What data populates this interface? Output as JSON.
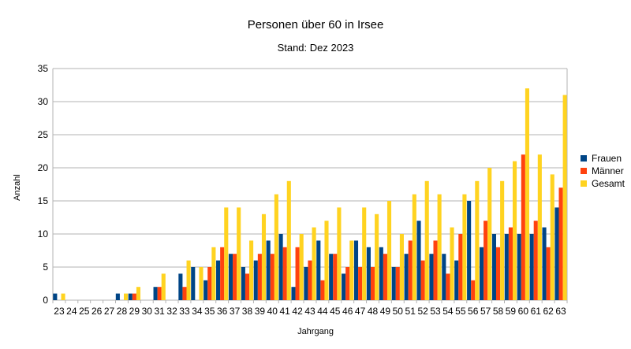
{
  "chart_data": {
    "type": "bar",
    "title": "Personen über 60 in Irsee",
    "subtitle": "Stand: Dez 2023",
    "xlabel": "Jahrgang",
    "ylabel": "Anzahl",
    "ylim": [
      0,
      35
    ],
    "yticks": [
      0,
      5,
      10,
      15,
      20,
      25,
      30,
      35
    ],
    "grid": true,
    "legend_position": "right",
    "categories": [
      "23",
      "24",
      "25",
      "26",
      "27",
      "28",
      "29",
      "30",
      "31",
      "32",
      "33",
      "34",
      "35",
      "36",
      "37",
      "38",
      "39",
      "40",
      "41",
      "42",
      "43",
      "44",
      "45",
      "46",
      "47",
      "48",
      "49",
      "50",
      "51",
      "52",
      "53",
      "54",
      "55",
      "56",
      "57",
      "58",
      "59",
      "60",
      "61",
      "62",
      "63"
    ],
    "series": [
      {
        "name": "Frauen",
        "color": "#004586",
        "values": [
          1,
          0,
          0,
          0,
          0,
          1,
          1,
          0,
          2,
          0,
          4,
          5,
          3,
          6,
          7,
          5,
          6,
          9,
          10,
          2,
          5,
          9,
          7,
          4,
          9,
          8,
          8,
          5,
          7,
          12,
          7,
          7,
          6,
          15,
          8,
          10,
          10,
          10,
          10,
          11,
          14
        ]
      },
      {
        "name": "Männer",
        "color": "#ff420e",
        "values": [
          0,
          0,
          0,
          0,
          0,
          0,
          1,
          0,
          2,
          0,
          2,
          0,
          5,
          8,
          7,
          4,
          7,
          7,
          8,
          8,
          6,
          3,
          7,
          5,
          5,
          5,
          7,
          5,
          9,
          6,
          9,
          4,
          10,
          3,
          12,
          8,
          11,
          22,
          12,
          8,
          17
        ]
      },
      {
        "name": "Gesamt",
        "color": "#ffd320",
        "values": [
          1,
          0,
          0,
          0,
          0,
          1,
          2,
          0,
          4,
          0,
          6,
          5,
          8,
          14,
          14,
          9,
          13,
          16,
          18,
          10,
          11,
          12,
          14,
          9,
          14,
          13,
          15,
          10,
          16,
          18,
          16,
          11,
          16,
          18,
          20,
          18,
          21,
          32,
          22,
          19,
          31
        ]
      }
    ]
  }
}
